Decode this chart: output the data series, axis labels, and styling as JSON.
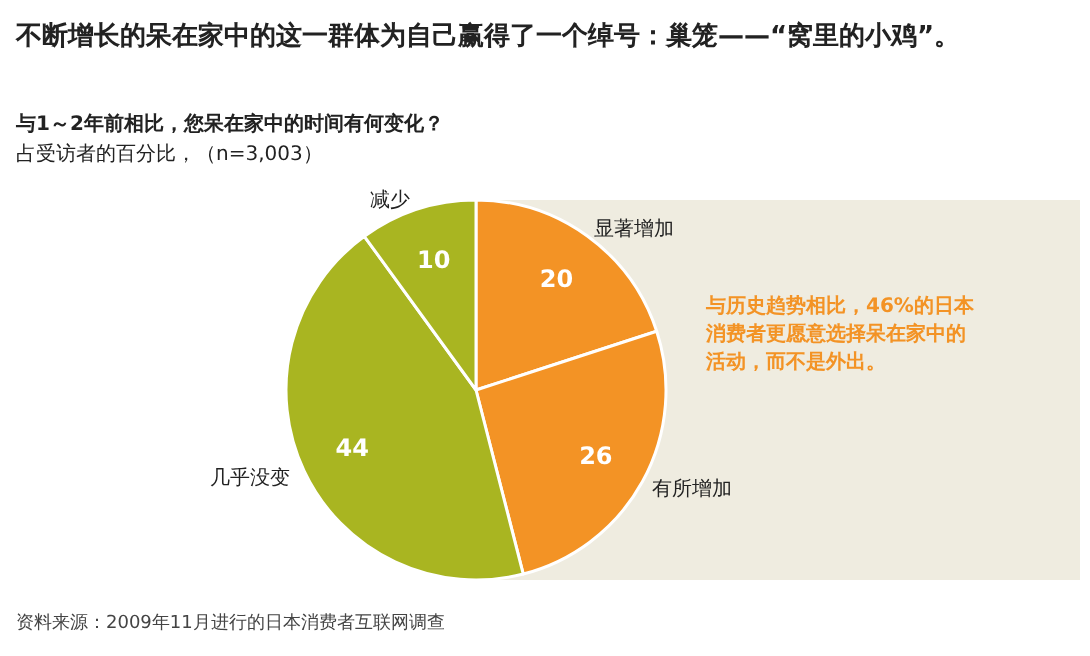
{
  "chart_data": {
    "type": "pie",
    "title": "不断增长的呆在家中的这一群体为自己赢得了一个绰号：巢笼——“窝里的小鸡”。",
    "subtitle": "与1～2年前相比，您呆在家中的时间有何变化？",
    "ylabel": "占受访者的百分比，（n=3,003）",
    "categories": [
      "显著增加",
      "有所增加",
      "几乎没变",
      "减少"
    ],
    "values": [
      20,
      26,
      44,
      10
    ],
    "colors": [
      "#f39325",
      "#f39325",
      "#a9b521",
      "#a9b521"
    ],
    "data_labels": true,
    "legend": false,
    "annotations": [
      "与历史趋势相比，46%的日本消费者更愿意选择呆在家中的活动，而不是外出。",
      "资料来源：2009年11月进行的日本消费者互联网调查"
    ]
  }
}
